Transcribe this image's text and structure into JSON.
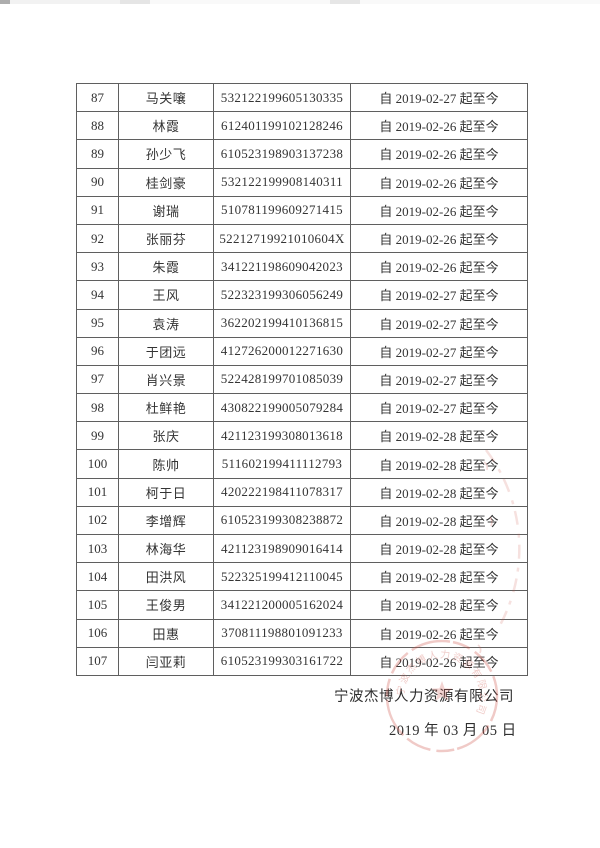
{
  "table": {
    "cell_keys": [
      "no",
      "name",
      "id",
      "period"
    ],
    "rows": [
      {
        "no": "87",
        "name": "马关嚷",
        "id": "532122199605130335",
        "period": "自 2019-02-27 起至今"
      },
      {
        "no": "88",
        "name": "林霞",
        "id": "612401199102128246",
        "period": "自 2019-02-26 起至今"
      },
      {
        "no": "89",
        "name": "孙少飞",
        "id": "610523198903137238",
        "period": "自 2019-02-26 起至今"
      },
      {
        "no": "90",
        "name": "桂剑豪",
        "id": "532122199908140311",
        "period": "自 2019-02-26 起至今"
      },
      {
        "no": "91",
        "name": "谢瑞",
        "id": "510781199609271415",
        "period": "自 2019-02-26 起至今"
      },
      {
        "no": "92",
        "name": "张丽芬",
        "id": "52212719921010604X",
        "period": "自 2019-02-26 起至今"
      },
      {
        "no": "93",
        "name": "朱霞",
        "id": "341221198609042023",
        "period": "自 2019-02-26 起至今"
      },
      {
        "no": "94",
        "name": "王风",
        "id": "522323199306056249",
        "period": "自 2019-02-27 起至今"
      },
      {
        "no": "95",
        "name": "袁涛",
        "id": "362202199410136815",
        "period": "自 2019-02-27 起至今"
      },
      {
        "no": "96",
        "name": "于团远",
        "id": "412726200012271630",
        "period": "自 2019-02-27 起至今"
      },
      {
        "no": "97",
        "name": "肖兴景",
        "id": "522428199701085039",
        "period": "自 2019-02-27 起至今"
      },
      {
        "no": "98",
        "name": "杜鲜艳",
        "id": "430822199005079284",
        "period": "自 2019-02-27 起至今"
      },
      {
        "no": "99",
        "name": "张庆",
        "id": "421123199308013618",
        "period": "自 2019-02-28 起至今"
      },
      {
        "no": "100",
        "name": "陈帅",
        "id": "511602199411112793",
        "period": "自 2019-02-28 起至今"
      },
      {
        "no": "101",
        "name": "柯于日",
        "id": "420222198411078317",
        "period": "自 2019-02-28 起至今"
      },
      {
        "no": "102",
        "name": "李增辉",
        "id": "610523199308238872",
        "period": "自 2019-02-28 起至今"
      },
      {
        "no": "103",
        "name": "林海华",
        "id": "421123198909016414",
        "period": "自 2019-02-28 起至今"
      },
      {
        "no": "104",
        "name": "田洪风",
        "id": "522325199412110045",
        "period": "自 2019-02-28 起至今"
      },
      {
        "no": "105",
        "name": "王俊男",
        "id": "341221200005162024",
        "period": "自 2019-02-28 起至今"
      },
      {
        "no": "106",
        "name": "田惠",
        "id": "370811198801091233",
        "period": "自 2019-02-26 起至今"
      },
      {
        "no": "107",
        "name": "闫亚莉",
        "id": "610523199303161722",
        "period": "自 2019-02-26 起至今"
      }
    ]
  },
  "footer": {
    "company": "宁波杰博人力资源有限公司",
    "date": "2019 年 03 月 05 日"
  },
  "stamp": {
    "text": "宁波杰博人力资源有限公司",
    "color": "#cf5a50"
  }
}
